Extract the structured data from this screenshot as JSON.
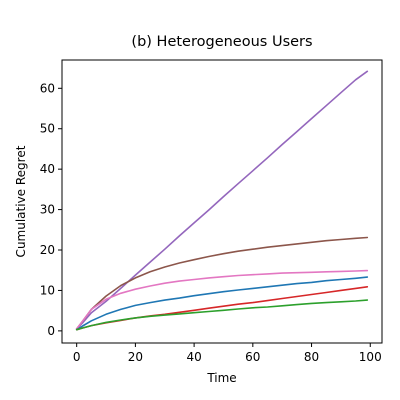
{
  "chart_data": {
    "type": "line",
    "title": "(b) Heterogeneous Users",
    "xlabel": "Time",
    "ylabel": "Cumulative Regret",
    "xlim": [
      -5,
      104
    ],
    "ylim": [
      -3,
      67
    ],
    "xticks": [
      0,
      20,
      40,
      60,
      80,
      100
    ],
    "yticks": [
      0,
      10,
      20,
      30,
      40,
      50,
      60
    ],
    "grid": false,
    "legend": "none",
    "x": [
      0,
      2,
      5,
      10,
      15,
      20,
      25,
      30,
      35,
      40,
      45,
      50,
      55,
      60,
      65,
      70,
      75,
      80,
      85,
      90,
      95,
      99
    ],
    "series": [
      {
        "color": "#9467bd",
        "values": [
          0.5,
          2.0,
          4.5,
          7.3,
          10.5,
          13.8,
          17.0,
          20.2,
          23.5,
          26.7,
          29.9,
          33.2,
          36.4,
          39.6,
          42.8,
          46.1,
          49.3,
          52.5,
          55.7,
          58.9,
          62.1,
          64.2
        ]
      },
      {
        "color": "#8c564b",
        "values": [
          0.5,
          2.4,
          5.3,
          8.6,
          11.2,
          13.1,
          14.6,
          15.8,
          16.8,
          17.6,
          18.4,
          19.1,
          19.7,
          20.2,
          20.7,
          21.1,
          21.5,
          21.9,
          22.3,
          22.6,
          22.9,
          23.1
        ]
      },
      {
        "color": "#e377c2",
        "values": [
          0.5,
          2.4,
          5.3,
          7.8,
          9.3,
          10.3,
          11.1,
          11.8,
          12.3,
          12.7,
          13.1,
          13.4,
          13.7,
          13.9,
          14.1,
          14.3,
          14.4,
          14.5,
          14.6,
          14.7,
          14.8,
          14.9
        ]
      },
      {
        "color": "#1f77b4",
        "values": [
          0.3,
          1.2,
          2.5,
          4.1,
          5.3,
          6.3,
          7.0,
          7.6,
          8.1,
          8.7,
          9.2,
          9.7,
          10.1,
          10.5,
          10.9,
          11.3,
          11.7,
          12.0,
          12.4,
          12.7,
          13.0,
          13.3
        ]
      },
      {
        "color": "#d62728",
        "values": [
          0.3,
          0.7,
          1.3,
          2.0,
          2.6,
          3.2,
          3.7,
          4.1,
          4.6,
          5.1,
          5.6,
          6.1,
          6.6,
          7.0,
          7.5,
          8.0,
          8.5,
          9.0,
          9.5,
          10.0,
          10.5,
          10.9
        ]
      },
      {
        "color": "#2ca02c",
        "values": [
          0.3,
          0.7,
          1.3,
          2.1,
          2.7,
          3.2,
          3.6,
          3.9,
          4.2,
          4.5,
          4.8,
          5.1,
          5.4,
          5.7,
          5.9,
          6.2,
          6.5,
          6.8,
          7.0,
          7.2,
          7.4,
          7.6
        ]
      }
    ]
  }
}
